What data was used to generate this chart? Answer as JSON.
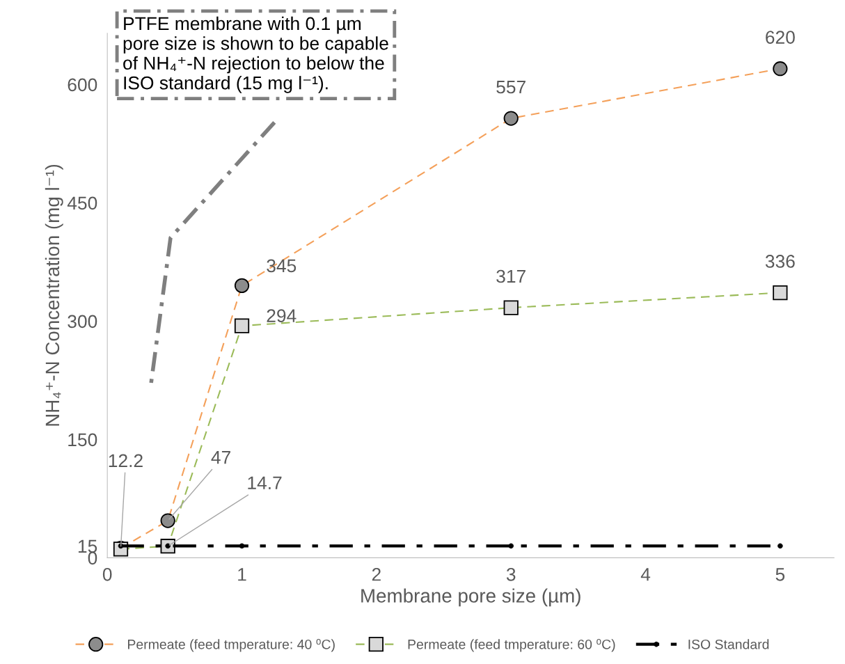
{
  "chart_data": {
    "type": "line",
    "xlabel": "Membrane pore size (µm)",
    "ylabel": "NH₄⁺-N Concentration (mg l⁻¹)",
    "xlim": [
      0,
      5.4
    ],
    "xticks": [
      0,
      1,
      2,
      3,
      4,
      5
    ],
    "ylim": [
      0,
      665
    ],
    "yticks": [
      0,
      15,
      150,
      300,
      450,
      600
    ],
    "grid": false,
    "legend": "bottom",
    "line_style": "dashed",
    "series": [
      {
        "name": "Permeate (feed tmperature: 40 ⁰C)",
        "color": "#f4a05a",
        "marker": "circle",
        "x": [
          0.1,
          0.45,
          1,
          3,
          5
        ],
        "values": [
          12.2,
          47,
          345,
          557,
          620
        ],
        "value_labels": [
          "12.2",
          "47",
          "345",
          "557",
          "620"
        ]
      },
      {
        "name": "Permeate (feed tmperature: 60 ⁰C)",
        "color": "#9bbb59",
        "marker": "square",
        "x": [
          0.1,
          0.45,
          1,
          3,
          5
        ],
        "values": [
          11,
          14.7,
          294,
          317,
          336
        ],
        "value_labels": [
          null,
          "14.7",
          "294",
          "317",
          "336"
        ]
      },
      {
        "name": "ISO Standard",
        "color": "#000000",
        "marker": "circle",
        "line_style": "dashdot",
        "x": [
          0.1,
          0.45,
          1,
          3,
          5
        ],
        "values": [
          15,
          15,
          15,
          15,
          15
        ]
      }
    ],
    "annotations": [
      "PTFE membrane with 0.1 µm\npore size is shown to be capable\nof NH₄⁺-N rejection to below the\nISO standard (15 mg l⁻¹)."
    ]
  }
}
